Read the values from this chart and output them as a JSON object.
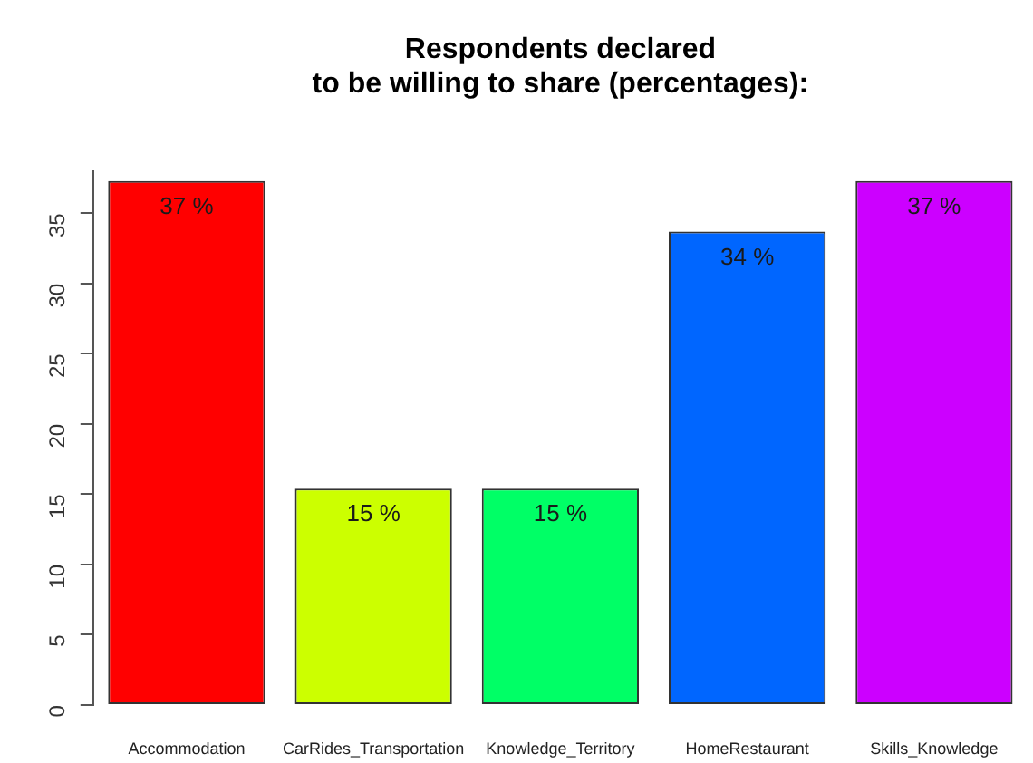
{
  "chart_data": {
    "type": "bar",
    "title": "Respondents declared\nto be willing to share (percentages):",
    "categories": [
      "Accommodation",
      "CarRides_Transportation",
      "Knowledge_Territory",
      "HomeRestaurant",
      "Skills_Knowledge"
    ],
    "values": [
      37.3,
      15.4,
      15.4,
      33.7,
      37.3
    ],
    "colors": [
      "#ff0000",
      "#ccff00",
      "#00ff66",
      "#0066ff",
      "#cc00ff"
    ],
    "value_labels": [
      "37 %",
      "15 %",
      "15 %",
      "34 %",
      "37 %"
    ],
    "ylim": [
      0,
      38
    ],
    "yticks": [
      0,
      5,
      10,
      15,
      20,
      25,
      30,
      35
    ]
  }
}
